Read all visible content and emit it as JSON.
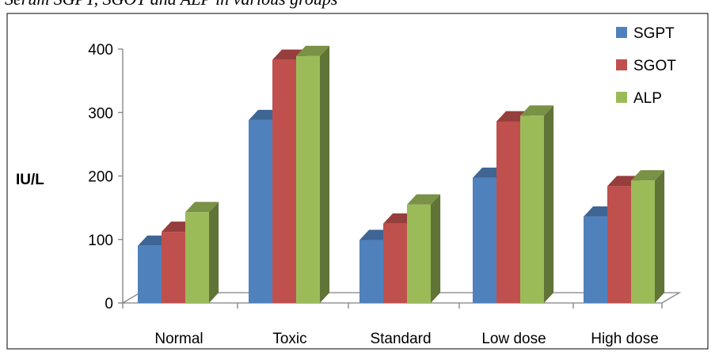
{
  "caption_fragment": "Serum SGPT, SGOT and ALP in various groups",
  "chart_data": {
    "type": "bar",
    "title": "",
    "xlabel": "",
    "ylabel": "IU/L",
    "ylim": [
      0,
      400
    ],
    "yticks": [
      0,
      100,
      200,
      300,
      400
    ],
    "grid": false,
    "legend_position": "top-right",
    "categories": [
      "Normal",
      "Toxic",
      "Standard",
      "Low dose",
      "High dose"
    ],
    "series": [
      {
        "name": "SGPT",
        "values": [
          90,
          288,
          99,
          197,
          136
        ],
        "color": "#4F81BD"
      },
      {
        "name": "SGOT",
        "values": [
          112,
          383,
          125,
          286,
          184
        ],
        "color": "#C0504D"
      },
      {
        "name": "ALP",
        "values": [
          143,
          389,
          155,
          295,
          193
        ],
        "color": "#9BBB59"
      }
    ]
  }
}
